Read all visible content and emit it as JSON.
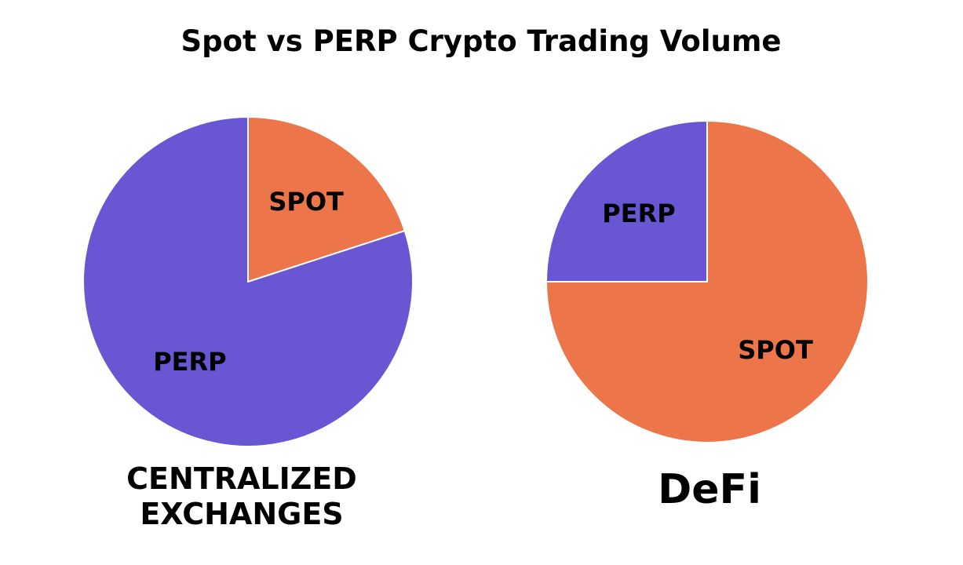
{
  "title": "Spot vs PERP Crypto Trading Volume",
  "colors": {
    "spot": "#ec7549",
    "perp": "#6856d3"
  },
  "chart_data": [
    {
      "type": "pie",
      "caption_lines": [
        "CENTRALIZED",
        "EXCHANGES"
      ],
      "start_angle_deg": 90,
      "direction": "clockwise",
      "slices": [
        {
          "label": "SPOT",
          "value": 20,
          "color": "#ec7549"
        },
        {
          "label": "PERP",
          "value": 80,
          "color": "#6856d3"
        }
      ]
    },
    {
      "type": "pie",
      "caption_lines": [
        "DeFi"
      ],
      "start_angle_deg": 90,
      "direction": "clockwise",
      "slices": [
        {
          "label": "SPOT",
          "value": 75,
          "color": "#ec7549"
        },
        {
          "label": "PERP",
          "value": 25,
          "color": "#6856d3"
        }
      ]
    }
  ]
}
